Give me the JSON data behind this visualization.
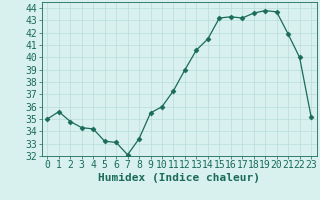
{
  "x": [
    0,
    1,
    2,
    3,
    4,
    5,
    6,
    7,
    8,
    9,
    10,
    11,
    12,
    13,
    14,
    15,
    16,
    17,
    18,
    19,
    20,
    21,
    22,
    23
  ],
  "y": [
    35.0,
    35.6,
    34.8,
    34.3,
    34.2,
    33.2,
    33.1,
    32.1,
    33.4,
    35.5,
    36.0,
    37.3,
    39.0,
    40.6,
    41.5,
    43.2,
    43.3,
    43.2,
    43.6,
    43.8,
    43.7,
    41.9,
    40.0,
    35.2
  ],
  "line_color": "#1a6b5a",
  "marker": "D",
  "marker_size": 2.5,
  "bg_color": "#d8f0ee",
  "grid_color": "#b8dcd8",
  "xlabel": "Humidex (Indice chaleur)",
  "ylim": [
    32,
    44.5
  ],
  "xlim": [
    -0.5,
    23.5
  ],
  "yticks": [
    32,
    33,
    34,
    35,
    36,
    37,
    38,
    39,
    40,
    41,
    42,
    43,
    44
  ],
  "xticks": [
    0,
    1,
    2,
    3,
    4,
    5,
    6,
    7,
    8,
    9,
    10,
    11,
    12,
    13,
    14,
    15,
    16,
    17,
    18,
    19,
    20,
    21,
    22,
    23
  ],
  "font_color": "#1a6b5a",
  "tick_font_size": 7,
  "xlabel_font_size": 8
}
